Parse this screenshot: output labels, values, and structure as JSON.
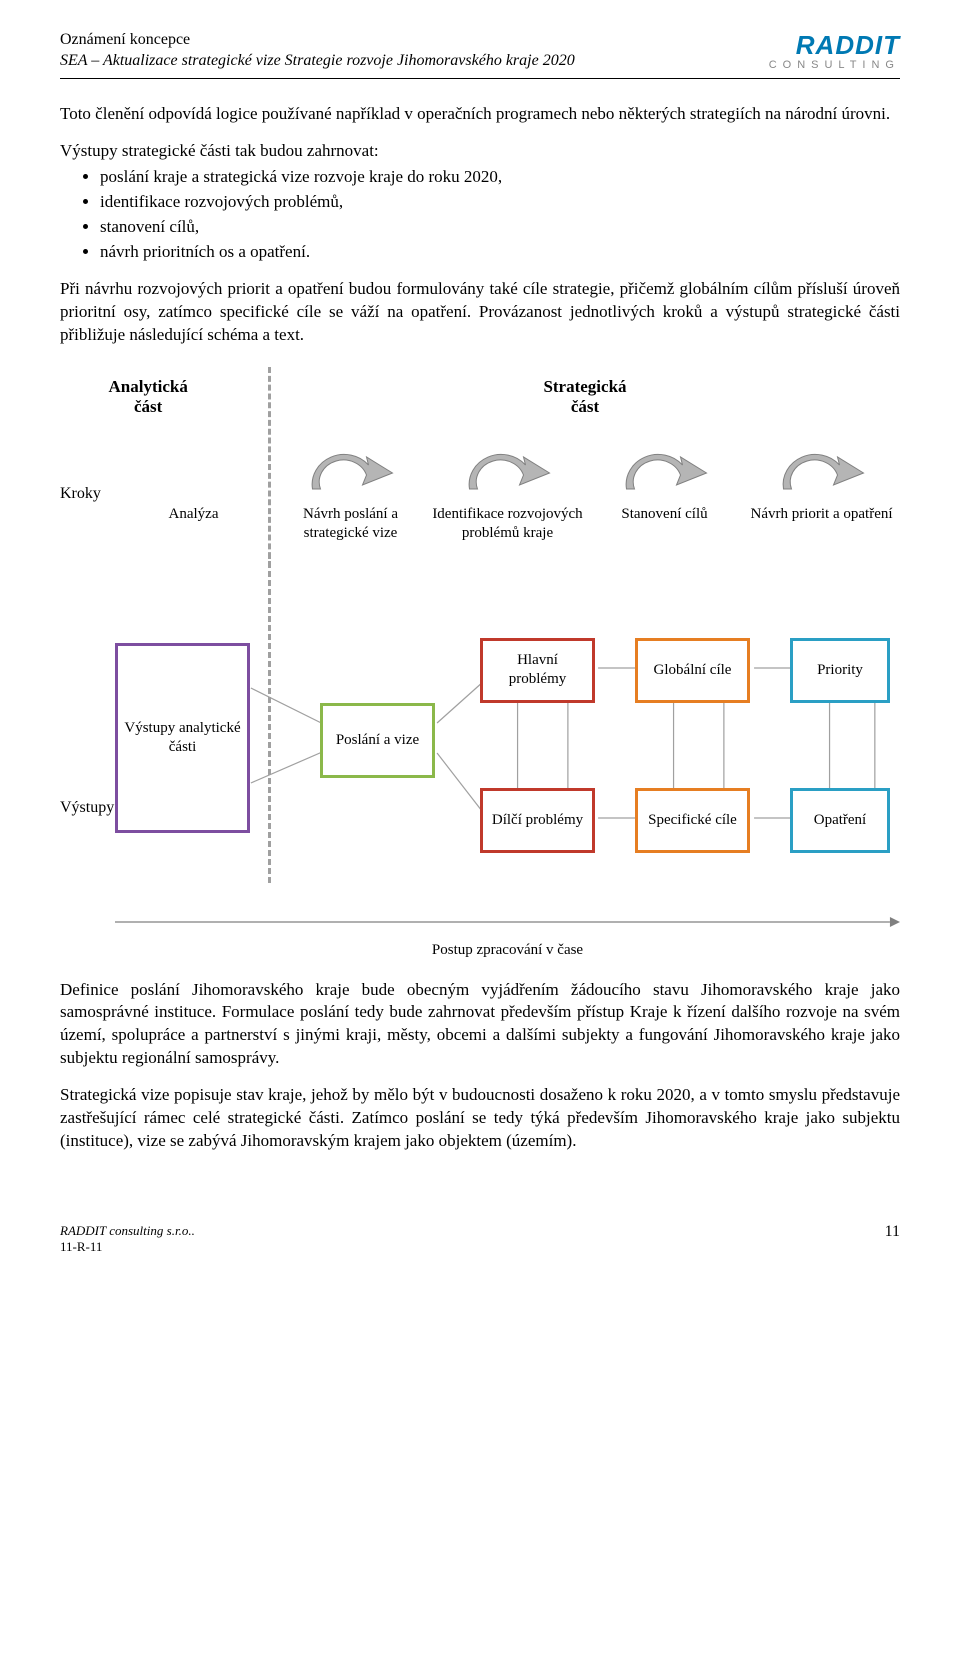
{
  "header": {
    "line1": "Oznámení koncepce",
    "line2": "SEA – Aktualizace strategické vize Strategie rozvoje Jihomoravského kraje 2020",
    "logo_name": "RADDIT",
    "logo_sub": "CONSULTING",
    "logo_color": "#0079b3"
  },
  "para1": "Toto členění odpovídá logice používané například v operačních programech nebo některých strategiích na národní úrovni.",
  "para2_lead": "Výstupy strategické části tak budou zahrnovat:",
  "bullets": [
    "poslání kraje a strategická vize rozvoje kraje do roku 2020,",
    "identifikace rozvojových problémů,",
    "stanovení cílů,",
    "návrh prioritních os a opatření."
  ],
  "para3": "Při návrhu rozvojových priorit a opatření budou formulovány také cíle strategie, přičemž globálním cílům přísluší úroveň prioritní osy, zatímco specifické cíle se váží na opatření. Provázanost jednotlivých kroků a výstupů strategické části přibližuje následující schéma a text.",
  "diagram": {
    "header_left": "Analytická část",
    "header_right": "Strategická část",
    "row1_label": "Kroky",
    "row2_label": "Výstupy",
    "steps": [
      "Analýza",
      "Návrh poslání a strategické vize",
      "Identifikace rozvojových problémů kraje",
      "Stanovení cílů",
      "Návrh priorit a opatření"
    ],
    "boxes": {
      "analyticke": {
        "label": "Výstupy analytické části",
        "color": "#7d4ea0"
      },
      "poslani": {
        "label": "Poslání a vize",
        "color": "#8bb84a"
      },
      "hlavni": {
        "label": "Hlavní problémy",
        "color": "#c0392b"
      },
      "dilci": {
        "label": "Dílčí problémy",
        "color": "#c0392b"
      },
      "globalni": {
        "label": "Globální cíle",
        "color": "#e67e22"
      },
      "specificke": {
        "label": "Specifické cíle",
        "color": "#e67e22"
      },
      "priority": {
        "label": "Priority",
        "color": "#2a9fc4"
      },
      "opatreni": {
        "label": "Opatření",
        "color": "#2a9fc4"
      }
    },
    "arrow_fill": "#b5b5b5",
    "arrow_stroke": "#808080",
    "connector_color": "#a0a0a0",
    "timeline_label": "Postup zpracování v čase",
    "timeline_color": "#808080"
  },
  "para4": "Definice poslání Jihomoravského kraje bude obecným vyjádřením žádoucího stavu Jihomoravského kraje jako samosprávné instituce. Formulace poslání tedy bude zahrnovat především přístup Kraje k řízení dalšího rozvoje na svém území, spolupráce a partnerství s jinými kraji, městy, obcemi a dalšími subjekty a fungování Jihomoravského kraje jako subjektu regionální samosprávy.",
  "para5": "Strategická vize popisuje stav kraje, jehož by mělo být v budoucnosti dosaženo k roku 2020, a v tomto smyslu představuje zastřešující rámec celé strategické části. Zatímco poslání se tedy týká především Jihomoravského kraje jako subjektu (instituce), vize se zabývá Jihomoravským krajem jako objektem (územím).",
  "footer": {
    "left1": "RADDIT consulting s.r.o..",
    "left2": "11-R-11",
    "page": "11"
  }
}
